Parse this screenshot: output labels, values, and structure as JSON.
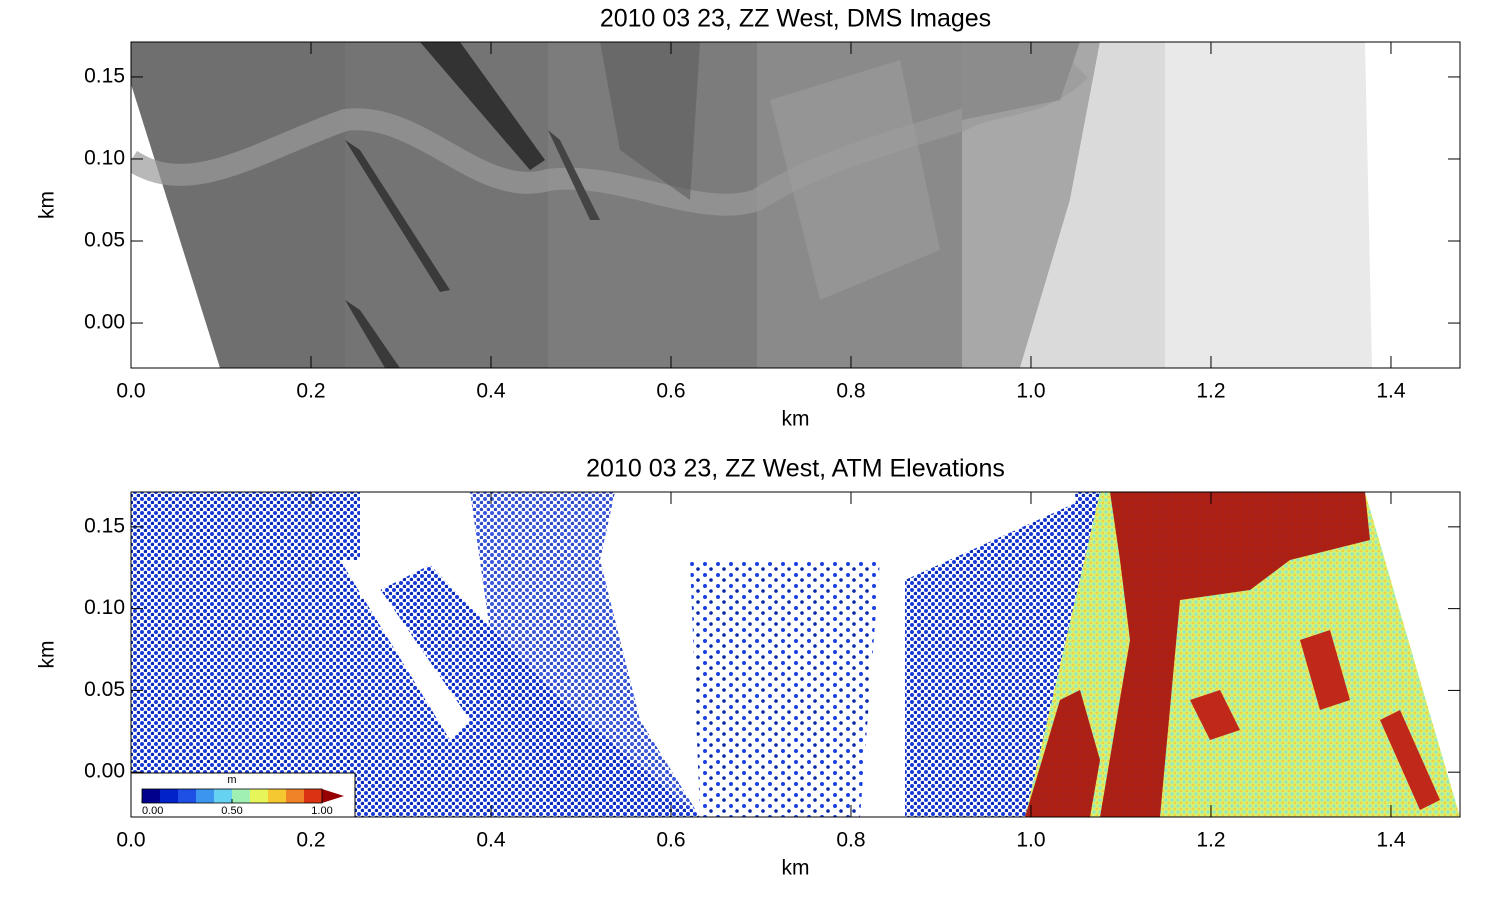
{
  "chart_data": [
    {
      "type": "image",
      "title": "2010 03 23,  ZZ West, DMS Images",
      "xlabel": "km",
      "ylabel": "km",
      "xlim": [
        0,
        1.4767
      ],
      "ylim": [
        -0.0274,
        0.1713
      ],
      "xticks": [
        {
          "value": 0,
          "label": "0.0"
        },
        0.2,
        0.4,
        0.6,
        0.8,
        {
          "value": 1,
          "label": "1.0"
        },
        1.2,
        1.4
      ],
      "yticks": [
        {
          "value": 0,
          "label": "0.00"
        },
        0.05,
        {
          "value": 0.1,
          "label": "0.10"
        },
        0.15
      ]
    },
    {
      "type": "scatter",
      "title": "2010 03 23,  ZZ West, ATM Elevations",
      "xlabel": "km",
      "ylabel": "km",
      "xlim": [
        0,
        1.4767
      ],
      "ylim": [
        -0.0274,
        0.1713
      ],
      "xticks": [
        {
          "value": 0,
          "label": "0.0"
        },
        0.2,
        0.4,
        0.6,
        0.8,
        {
          "value": 1,
          "label": "1.0"
        },
        1.2,
        1.4
      ],
      "yticks": [
        {
          "value": 0,
          "label": "0.00"
        },
        0.05,
        {
          "value": 0.1,
          "label": "0.10"
        },
        0.15
      ],
      "colorbar": {
        "label": "m",
        "lim": [
          0,
          1
        ],
        "ticks": [
          {
            "value": 0,
            "label": "0.00"
          },
          {
            "value": 0.5,
            "label": "0.50"
          },
          {
            "value": 1,
            "label": "1.00"
          }
        ],
        "colors": [
          "#00008c",
          "#0022c8",
          "#1e50e6",
          "#3c96f0",
          "#64d2f0",
          "#a0f0b4",
          "#e6f55a",
          "#f5c832",
          "#f08228",
          "#dc3214"
        ],
        "overflow_color": "#960000"
      }
    }
  ]
}
